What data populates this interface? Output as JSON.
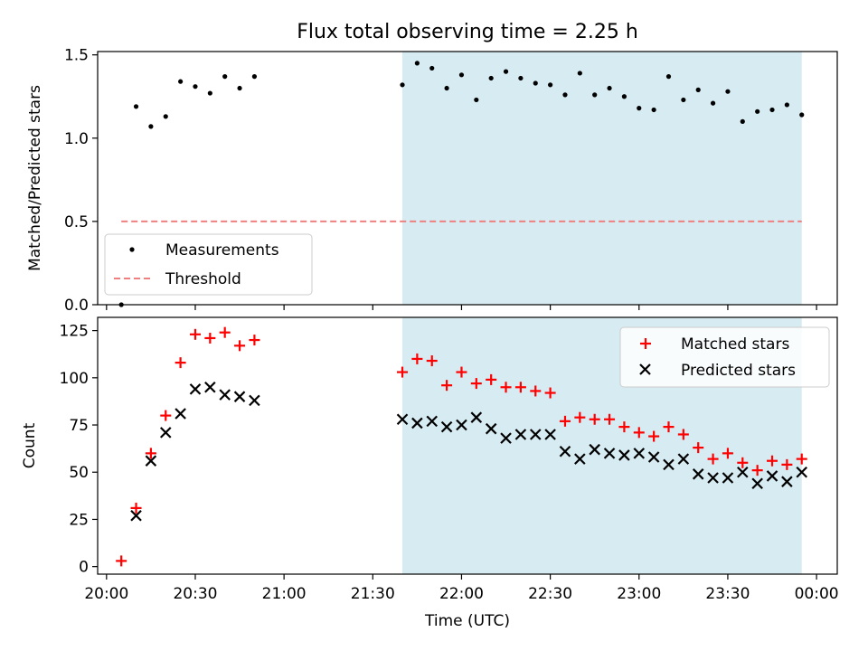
{
  "title": "Flux total observing time = 2.25 h",
  "colors": {
    "highlight": "#add8e6",
    "matched": "#ff0000",
    "predicted": "#000000",
    "measurement": "#000000",
    "threshold": "#f08080"
  },
  "chart_data": [
    {
      "type": "scatter",
      "ylabel": "Matched/Predicted stars",
      "ylim": [
        0,
        1.52
      ],
      "yticks": [
        "0.0",
        "0.5",
        "1.0",
        "1.5"
      ],
      "ytick_values": [
        0,
        0.5,
        1.0,
        1.5
      ],
      "highlight_span": [
        "21:40",
        "23:55"
      ],
      "legend": {
        "position": "lower-left",
        "entries": [
          "Measurements",
          "Threshold"
        ]
      },
      "series": [
        {
          "name": "Measurements",
          "x": [
            "20:05",
            "20:10",
            "20:15",
            "20:20",
            "20:25",
            "20:30",
            "20:35",
            "20:40",
            "20:45",
            "20:50",
            "21:40",
            "21:45",
            "21:50",
            "21:55",
            "22:00",
            "22:05",
            "22:10",
            "22:15",
            "22:20",
            "22:25",
            "22:30",
            "22:35",
            "22:40",
            "22:45",
            "22:50",
            "22:55",
            "23:00",
            "23:05",
            "23:10",
            "23:15",
            "23:20",
            "23:25",
            "23:30",
            "23:35",
            "23:40",
            "23:45",
            "23:50",
            "23:55"
          ],
          "y": [
            0.0,
            1.19,
            1.07,
            1.13,
            1.34,
            1.31,
            1.27,
            1.37,
            1.3,
            1.37,
            1.32,
            1.45,
            1.42,
            1.3,
            1.38,
            1.23,
            1.36,
            1.4,
            1.36,
            1.33,
            1.32,
            1.26,
            1.39,
            1.26,
            1.3,
            1.25,
            1.18,
            1.17,
            1.37,
            1.23,
            1.29,
            1.21,
            1.28,
            1.1,
            1.16,
            1.17,
            1.2,
            1.14
          ]
        },
        {
          "name": "Threshold",
          "x": [
            "20:05",
            "23:55"
          ],
          "y": [
            0.5,
            0.5
          ]
        }
      ]
    },
    {
      "type": "scatter",
      "xlabel": "Time (UTC)",
      "ylabel": "Count",
      "ylim": [
        -4,
        132
      ],
      "yticks": [
        "0",
        "25",
        "50",
        "75",
        "100",
        "125"
      ],
      "ytick_values": [
        0,
        25,
        50,
        75,
        100,
        125
      ],
      "xlim": [
        "19:57",
        "00:07"
      ],
      "xticks": [
        "20:00",
        "20:30",
        "21:00",
        "21:30",
        "22:00",
        "22:30",
        "23:00",
        "23:30",
        "00:00"
      ],
      "highlight_span": [
        "21:40",
        "23:55"
      ],
      "legend": {
        "position": "top-right",
        "entries": [
          "Matched stars",
          "Predicted stars"
        ]
      },
      "series": [
        {
          "name": "Matched stars",
          "x": [
            "20:05",
            "20:10",
            "20:15",
            "20:20",
            "20:25",
            "20:30",
            "20:35",
            "20:40",
            "20:45",
            "20:50",
            "21:40",
            "21:45",
            "21:50",
            "21:55",
            "22:00",
            "22:05",
            "22:10",
            "22:15",
            "22:20",
            "22:25",
            "22:30",
            "22:35",
            "22:40",
            "22:45",
            "22:50",
            "22:55",
            "23:00",
            "23:05",
            "23:10",
            "23:15",
            "23:20",
            "23:25",
            "23:30",
            "23:35",
            "23:40",
            "23:45",
            "23:50",
            "23:55"
          ],
          "y": [
            3,
            31,
            60,
            80,
            108,
            123,
            121,
            124,
            117,
            120,
            103,
            110,
            109,
            96,
            103,
            97,
            99,
            95,
            95,
            93,
            92,
            77,
            79,
            78,
            78,
            74,
            71,
            69,
            74,
            70,
            63,
            57,
            60,
            55,
            51,
            56,
            54,
            57
          ]
        },
        {
          "name": "Predicted stars",
          "x": [
            "20:10",
            "20:15",
            "20:20",
            "20:25",
            "20:30",
            "20:35",
            "20:40",
            "20:45",
            "20:50",
            "21:40",
            "21:45",
            "21:50",
            "21:55",
            "22:00",
            "22:05",
            "22:10",
            "22:15",
            "22:20",
            "22:25",
            "22:30",
            "22:35",
            "22:40",
            "22:45",
            "22:50",
            "22:55",
            "23:00",
            "23:05",
            "23:10",
            "23:15",
            "23:20",
            "23:25",
            "23:30",
            "23:35",
            "23:40",
            "23:45",
            "23:50",
            "23:55"
          ],
          "y": [
            27,
            56,
            71,
            81,
            94,
            95,
            91,
            90,
            88,
            78,
            76,
            77,
            74,
            75,
            79,
            73,
            68,
            70,
            70,
            70,
            61,
            57,
            62,
            60,
            59,
            60,
            58,
            54,
            57,
            49,
            47,
            47,
            50,
            44,
            48,
            45,
            50
          ]
        }
      ]
    }
  ]
}
